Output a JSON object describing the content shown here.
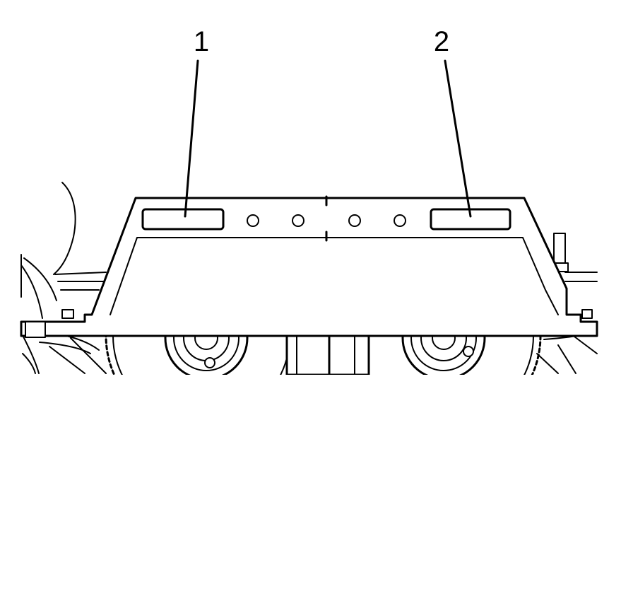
{
  "callouts": [
    {
      "id": "1",
      "label": "1"
    },
    {
      "id": "2",
      "label": "2"
    }
  ],
  "colors": {
    "line": "#000000",
    "background": "#ffffff"
  }
}
